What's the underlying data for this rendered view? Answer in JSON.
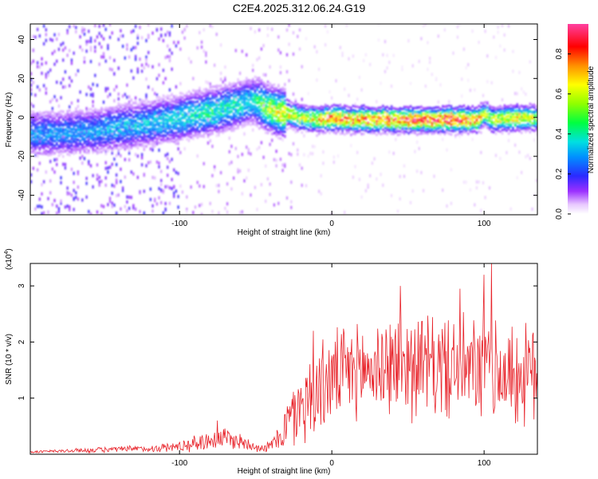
{
  "title": "C2E4.2025.312.06.24.G19",
  "chart_data": [
    {
      "type": "heatmap",
      "xlabel": "Height of straight line (km)",
      "ylabel": "Frequency (Hz)",
      "xlim": [
        -198,
        135
      ],
      "ylim": [
        -50,
        48
      ],
      "xticks": [
        -100,
        0,
        100
      ],
      "yticks": [
        -40,
        -20,
        0,
        20,
        40
      ],
      "colorbar": {
        "label": "Normalized spectral amplitude",
        "range": [
          0,
          0.95
        ],
        "ticks": [
          "0.0",
          "0.2",
          "0.4",
          "0.6",
          "0.8"
        ],
        "tick_values": [
          0.0,
          0.2,
          0.4,
          0.6,
          0.8
        ]
      },
      "ridge": {
        "x": [
          -198,
          -180,
          -160,
          -140,
          -120,
          -100,
          -80,
          -60,
          -52,
          -45,
          -40,
          -30,
          -20,
          -10,
          0,
          10,
          20,
          40,
          60,
          80,
          95,
          100,
          105,
          120,
          135
        ],
        "frequency_hz": [
          -8,
          -8,
          -7,
          -5,
          -3,
          0,
          3,
          7,
          9,
          6,
          4,
          2,
          0,
          -1,
          0,
          -1,
          -1,
          -1,
          -1,
          -1,
          -1,
          2,
          -1,
          0,
          0
        ],
        "peak_amplitude": [
          0.3,
          0.3,
          0.3,
          0.35,
          0.35,
          0.4,
          0.45,
          0.4,
          0.4,
          0.55,
          0.6,
          0.7,
          0.6,
          0.7,
          0.85,
          0.8,
          0.85,
          0.85,
          0.9,
          0.9,
          0.8,
          0.6,
          0.6,
          0.75,
          0.6
        ]
      }
    },
    {
      "type": "line",
      "xlabel": "Height of straight line (km)",
      "ylabel": "SNR (10 * v/v)",
      "scale_label": "(x10",
      "scale_exponent": "4",
      "scale_suffix": ")",
      "xlim": [
        -198,
        135
      ],
      "ylim": [
        0,
        3.4
      ],
      "xticks": [
        -100,
        0,
        100
      ],
      "yticks": [
        1,
        2,
        3
      ],
      "color": "#e8232a",
      "envelope": {
        "x": [
          -198,
          -150,
          -120,
          -100,
          -80,
          -70,
          -60,
          -50,
          -45,
          -40,
          -35,
          -30,
          -25,
          -20,
          -15,
          -10,
          -5,
          0,
          10,
          20,
          30,
          40,
          50,
          60,
          70,
          80,
          90,
          100,
          110,
          120,
          130,
          135
        ],
        "mean": [
          0.04,
          0.08,
          0.1,
          0.14,
          0.25,
          0.3,
          0.22,
          0.15,
          0.1,
          0.15,
          0.3,
          0.5,
          0.7,
          0.9,
          1.0,
          1.1,
          1.25,
          1.35,
          1.45,
          1.5,
          1.55,
          1.6,
          1.65,
          1.6,
          1.55,
          1.55,
          1.5,
          1.5,
          1.45,
          1.4,
          1.4,
          1.4
        ],
        "spread": [
          0.02,
          0.05,
          0.06,
          0.1,
          0.18,
          0.2,
          0.15,
          0.1,
          0.07,
          0.1,
          0.25,
          0.45,
          0.6,
          0.7,
          0.75,
          0.8,
          0.8,
          0.8,
          0.8,
          0.8,
          0.85,
          0.9,
          0.95,
          0.9,
          0.9,
          0.9,
          0.9,
          0.95,
          0.9,
          0.9,
          0.9,
          0.9
        ]
      },
      "peaks": [
        {
          "x": 105,
          "y": 3.4
        },
        {
          "x": 100,
          "y": 3.2
        },
        {
          "x": 45,
          "y": 3.0
        },
        {
          "x": 84,
          "y": 2.95
        },
        {
          "x": -12,
          "y": 2.2
        },
        {
          "x": -75,
          "y": 0.6
        }
      ]
    }
  ]
}
